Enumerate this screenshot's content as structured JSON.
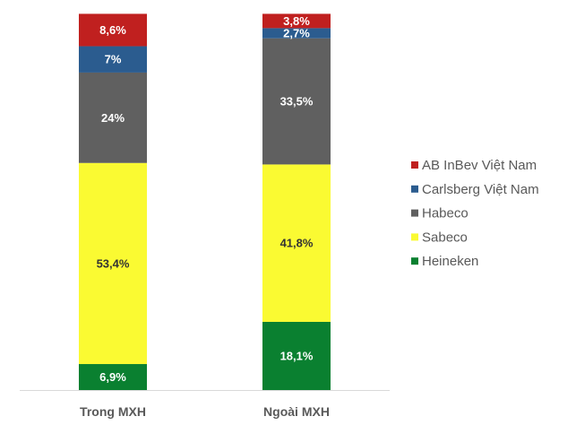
{
  "chart_data": {
    "type": "bar",
    "stacked": true,
    "title": "",
    "xlabel": "",
    "ylabel": "",
    "ylim": [
      0,
      100
    ],
    "grid": false,
    "legend_position": "right",
    "categories": [
      "Trong MXH",
      "Ngoài MXH"
    ],
    "series": [
      {
        "name": "Heineken",
        "color": "#0A8030",
        "label_color": "#FFFFFF",
        "values": [
          6.9,
          18.1
        ],
        "labels": [
          "6,9%",
          "18,1%"
        ]
      },
      {
        "name": "Sabeco",
        "color": "#FAFA32",
        "label_color": "#333333",
        "values": [
          53.4,
          41.8
        ],
        "labels": [
          "53,4%",
          "41,8%"
        ]
      },
      {
        "name": "Habeco",
        "color": "#606060",
        "label_color": "#FFFFFF",
        "values": [
          24,
          33.5
        ],
        "labels": [
          "24%",
          "33,5%"
        ]
      },
      {
        "name": "Carlsberg Việt Nam",
        "color": "#2B5C8F",
        "label_color": "#FFFFFF",
        "values": [
          7,
          2.7
        ],
        "labels": [
          "7%",
          "2,7%"
        ]
      },
      {
        "name": "AB InBev Việt Nam",
        "color": "#C0201F",
        "label_color": "#FFFFFF",
        "values": [
          8.6,
          3.8
        ],
        "labels": [
          "8,6%",
          "3,8%"
        ]
      }
    ]
  }
}
